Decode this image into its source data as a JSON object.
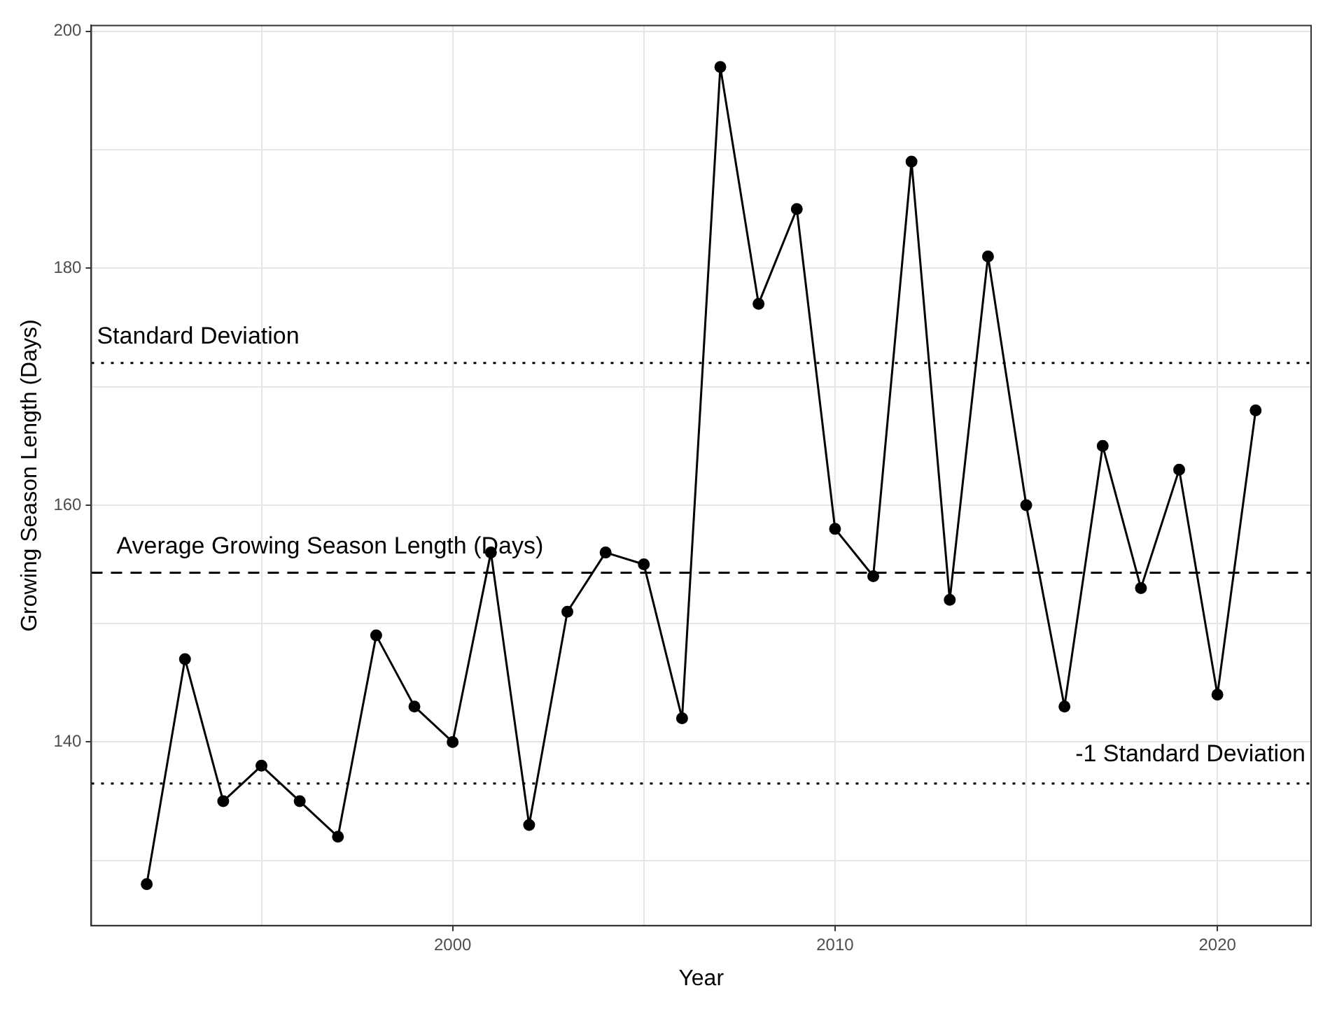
{
  "chart_data": {
    "type": "line",
    "xlabel": "Year",
    "ylabel": "Growing Season Length (Days)",
    "x": [
      1992,
      1993,
      1994,
      1995,
      1996,
      1997,
      1998,
      1999,
      2000,
      2001,
      2002,
      2003,
      2004,
      2005,
      2006,
      2007,
      2008,
      2009,
      2010,
      2011,
      2012,
      2013,
      2014,
      2015,
      2016,
      2017,
      2018,
      2019,
      2020,
      2021
    ],
    "series": [
      {
        "color": "#000000",
        "values": [
          128,
          147,
          135,
          138,
          135,
          132,
          149,
          143,
          140,
          156,
          133,
          151,
          156,
          155,
          142,
          197,
          177,
          185,
          158,
          154,
          189,
          152,
          181,
          160,
          143,
          165,
          153,
          163,
          144,
          168
        ]
      }
    ],
    "xlim": [
      1990.55,
      2022.45
    ],
    "ylim": [
      124.5,
      200.5
    ],
    "xticks": [
      {
        "value": 1995,
        "label": null
      },
      2000,
      {
        "value": 2005,
        "label": null
      },
      2010,
      {
        "value": 2015,
        "label": null
      },
      2020
    ],
    "yticks": [
      {
        "value": 130,
        "label": null
      },
      140,
      {
        "value": 150,
        "label": null
      },
      160,
      {
        "value": 170,
        "label": null
      },
      180,
      {
        "value": 190,
        "label": null
      },
      200
    ],
    "ref_lines": [
      {
        "axis": "y",
        "value": 172.0,
        "label": "Standard Deviation",
        "line_style": "dotted",
        "color": "#000000"
      },
      {
        "axis": "y",
        "value": 154.3,
        "label": "Average Growing Season Length (Days)",
        "line_style": "dashed",
        "color": "#000000"
      },
      {
        "axis": "y",
        "value": 136.5,
        "label": "-1 Standard Deviation",
        "line_style": "dotted",
        "color": "#000000"
      }
    ],
    "grid": true,
    "legend": false,
    "marker": "circle",
    "line_style": "solid"
  }
}
